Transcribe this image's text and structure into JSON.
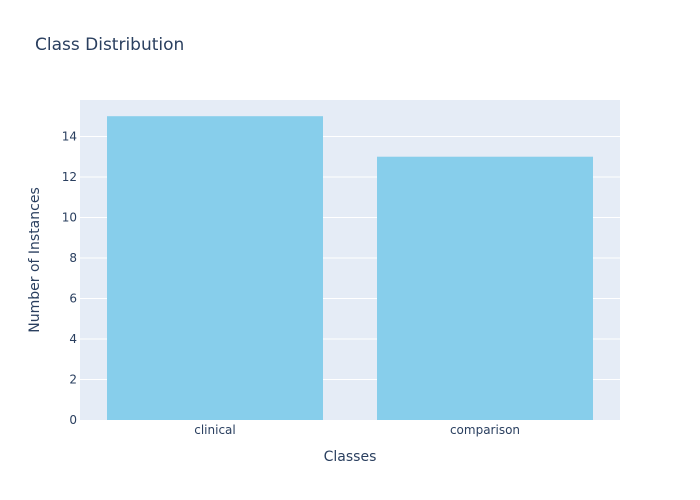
{
  "chart_data": {
    "type": "bar",
    "title": "Class Distribution",
    "xlabel": "Classes",
    "ylabel": "Number of Instances",
    "categories": [
      "clinical",
      "comparison"
    ],
    "values": [
      15,
      13
    ],
    "ylim": [
      0,
      15.8
    ],
    "yticks": [
      0,
      2,
      4,
      6,
      8,
      10,
      12,
      14
    ],
    "grid": true,
    "colors": {
      "bar": "#87ceeb",
      "plot_bg": "#e5ecf6",
      "grid": "#ffffff",
      "text": "#2a3f5f"
    }
  }
}
